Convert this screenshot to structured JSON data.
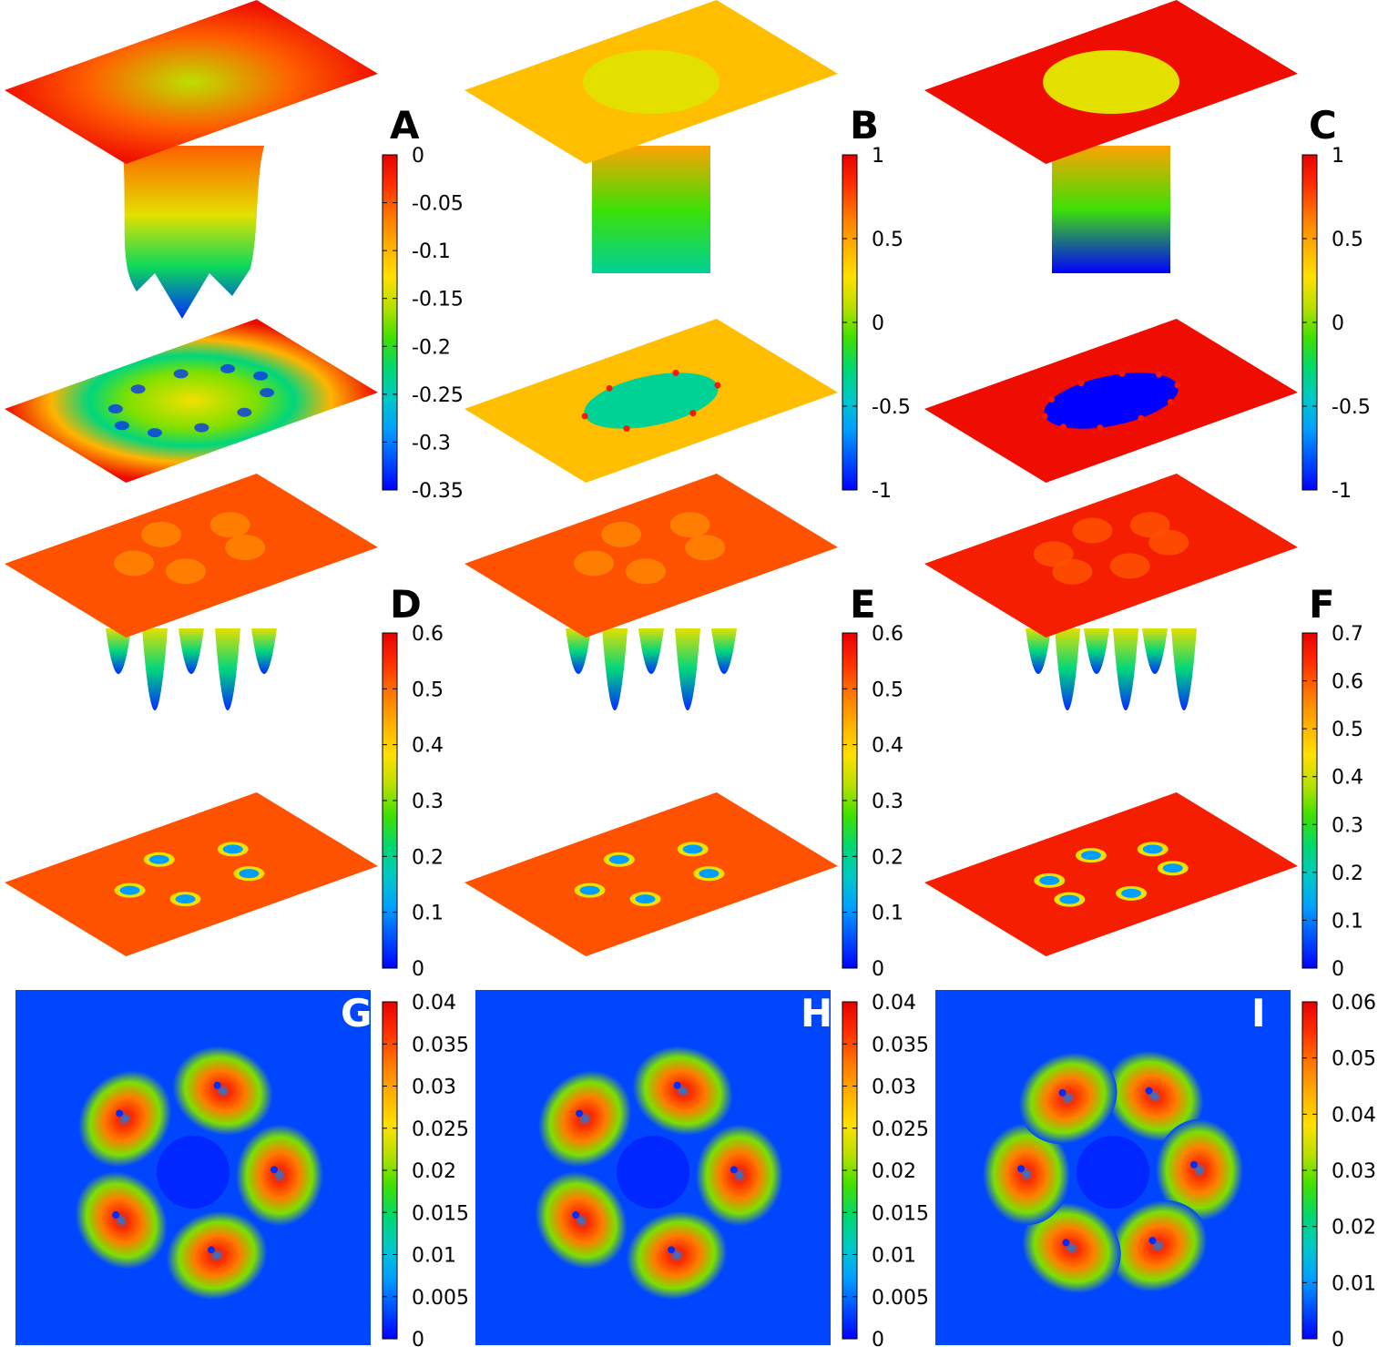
{
  "colormap": [
    "#0000ff",
    "#0050ff",
    "#00a0ff",
    "#00c8c8",
    "#00d870",
    "#40e000",
    "#b8e000",
    "#ffe000",
    "#ffb000",
    "#ff7800",
    "#ff3000",
    "#e80000"
  ],
  "chart_data": [
    {
      "panel": "A",
      "type": "surface3d",
      "colorbar": {
        "ticks": [
          "0",
          "-0.05",
          "-0.1",
          "-0.15",
          "-0.2",
          "-0.25",
          "-0.3",
          "-0.35"
        ],
        "range": [
          -0.35,
          0
        ]
      },
      "surface": {
        "kind": "ring-well",
        "n_dips": 10,
        "min_value": -0.35,
        "max_value": 0
      },
      "projection": {
        "kind": "ring-of-dips",
        "n_dips": 10
      }
    },
    {
      "panel": "B",
      "type": "surface3d",
      "colorbar": {
        "ticks": [
          "1",
          "0.5",
          "0",
          "-0.5",
          "-1"
        ],
        "range": [
          -1,
          1
        ]
      },
      "surface": {
        "kind": "phase-disk",
        "n_vortices": 6,
        "outer_value": 0.4,
        "inner_value": -0.35
      },
      "projection": {
        "kind": "phase-disk",
        "n_vortices": 6
      }
    },
    {
      "panel": "C",
      "type": "surface3d",
      "colorbar": {
        "ticks": [
          "1",
          "0.5",
          "0",
          "-0.5",
          "-1"
        ],
        "range": [
          -1,
          1
        ]
      },
      "surface": {
        "kind": "phase-disk",
        "n_vortices": 10,
        "outer_value": 0.95,
        "inner_value": -1
      },
      "projection": {
        "kind": "phase-disk",
        "n_vortices": 10
      }
    },
    {
      "panel": "D",
      "type": "surface3d",
      "colorbar": {
        "ticks": [
          "0.6",
          "0.5",
          "0.4",
          "0.3",
          "0.2",
          "0.1",
          "0"
        ],
        "range": [
          0,
          0.6
        ]
      },
      "surface": {
        "kind": "vortex-density",
        "n_vortices": 5,
        "background": 0.52,
        "min_value": 0
      },
      "projection": {
        "kind": "vortex-density",
        "n_vortices": 5
      }
    },
    {
      "panel": "E",
      "type": "surface3d",
      "colorbar": {
        "ticks": [
          "0.6",
          "0.5",
          "0.4",
          "0.3",
          "0.2",
          "0.1",
          "0"
        ],
        "range": [
          0,
          0.6
        ]
      },
      "surface": {
        "kind": "vortex-density",
        "n_vortices": 5,
        "background": 0.52,
        "min_value": 0
      },
      "projection": {
        "kind": "vortex-density",
        "n_vortices": 5
      }
    },
    {
      "panel": "F",
      "type": "surface3d",
      "colorbar": {
        "ticks": [
          "0.7",
          "0.6",
          "0.5",
          "0.4",
          "0.3",
          "0.2",
          "0.1",
          "0"
        ],
        "range": [
          0,
          0.7
        ]
      },
      "surface": {
        "kind": "vortex-density",
        "n_vortices": 6,
        "background": 0.66,
        "min_value": 0
      },
      "projection": {
        "kind": "vortex-density",
        "n_vortices": 6
      }
    },
    {
      "panel": "G",
      "type": "heatmap",
      "colorbar": {
        "ticks": [
          "0.04",
          "0.035",
          "0.03",
          "0.025",
          "0.02",
          "0.015",
          "0.01",
          "0.005",
          "0"
        ],
        "range": [
          0,
          0.04
        ]
      },
      "blobs": {
        "count": 5,
        "peak": 0.037,
        "core": 0.006
      }
    },
    {
      "panel": "H",
      "type": "heatmap",
      "colorbar": {
        "ticks": [
          "0.04",
          "0.035",
          "0.03",
          "0.025",
          "0.02",
          "0.015",
          "0.01",
          "0.005",
          "0"
        ],
        "range": [
          0,
          0.04
        ]
      },
      "blobs": {
        "count": 5,
        "peak": 0.037,
        "core": 0.006
      }
    },
    {
      "panel": "I",
      "type": "heatmap",
      "colorbar": {
        "ticks": [
          "0.06",
          "0.05",
          "0.04",
          "0.03",
          "0.02",
          "0.01",
          "0"
        ],
        "range": [
          0,
          0.06
        ]
      },
      "blobs": {
        "count": 6,
        "peak": 0.055,
        "core": 0.008
      }
    }
  ]
}
